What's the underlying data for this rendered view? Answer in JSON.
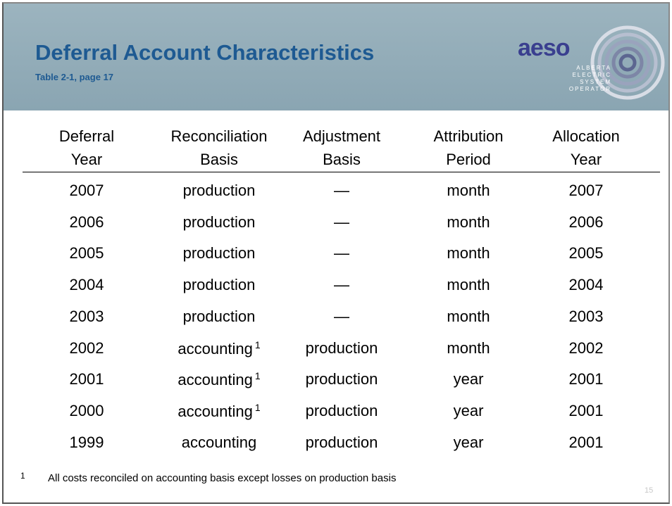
{
  "header": {
    "title": "Deferral Account Characteristics",
    "subtitle": "Table 2-1, page 17",
    "logo": {
      "name": "aeso",
      "lines": [
        "ALBERTA",
        "ELECTRIC",
        "SYSTEM",
        "OPERATOR"
      ]
    }
  },
  "table": {
    "columns": [
      [
        "Deferral",
        "Year"
      ],
      [
        "Reconciliation",
        "Basis"
      ],
      [
        "Adjustment",
        "Basis"
      ],
      [
        "Attribution",
        "Period"
      ],
      [
        "Allocation",
        "Year"
      ]
    ],
    "rows": [
      [
        "2007",
        "production",
        "—",
        "month",
        "2007"
      ],
      [
        "2006",
        "production",
        "—",
        "month",
        "2006"
      ],
      [
        "2005",
        "production",
        "—",
        "month",
        "2005"
      ],
      [
        "2004",
        "production",
        "—",
        "month",
        "2004"
      ],
      [
        "2003",
        "production",
        "—",
        "month",
        "2003"
      ],
      [
        "2002",
        {
          "text": "accounting",
          "sup": "1"
        },
        "production",
        "month",
        "2002"
      ],
      [
        "2001",
        {
          "text": "accounting",
          "sup": "1"
        },
        "production",
        "year",
        "2001"
      ],
      [
        "2000",
        {
          "text": "accounting",
          "sup": "1"
        },
        "production",
        "year",
        "2001"
      ],
      [
        "1999",
        "accounting",
        "production",
        "year",
        "2001"
      ]
    ]
  },
  "footnote": {
    "mark": "1",
    "text": "All costs reconciled on accounting basis except losses on production basis"
  },
  "page_number": "15"
}
